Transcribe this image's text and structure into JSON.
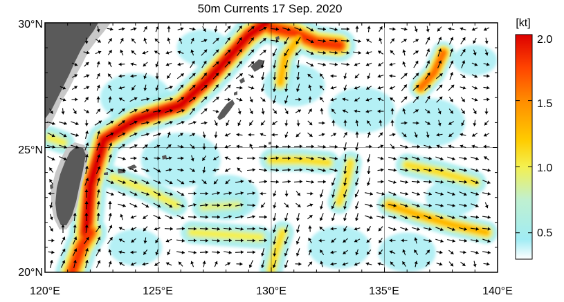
{
  "title": "50m Currents  17 Sep. 2020",
  "map": {
    "lon_range": [
      120,
      140
    ],
    "lat_range": [
      20,
      30
    ],
    "lon_ticks": [
      "120°E",
      "125°E",
      "130°E",
      "135°E",
      "140°E"
    ],
    "lat_ticks": [
      "20°N",
      "25°N",
      "30°N"
    ],
    "grid": true,
    "arrow_color": "#000000",
    "land_color": "#5a5a5a",
    "shelf_color": "#c8c8c8"
  },
  "colorbar": {
    "unit": "[kt]",
    "labels": [
      "2.0",
      "1.5",
      "1.0",
      "0.5"
    ],
    "range": [
      0.3,
      2.0
    ],
    "stops": [
      {
        "v": 0.3,
        "color": "#ffffff"
      },
      {
        "v": 0.45,
        "color": "#a0ecf4"
      },
      {
        "v": 0.75,
        "color": "#c0f0d0"
      },
      {
        "v": 1.0,
        "color": "#f4f050"
      },
      {
        "v": 1.2,
        "color": "#ffcc00"
      },
      {
        "v": 1.5,
        "color": "#ff8c00"
      },
      {
        "v": 1.75,
        "color": "#ff4400"
      },
      {
        "v": 2.0,
        "color": "#dd0000"
      }
    ]
  },
  "chart_data": {
    "type": "heatmap",
    "title": "50m Currents  17 Sep. 2020",
    "variable": "current speed",
    "unit": "kt",
    "x_range_lon": [
      120,
      140
    ],
    "y_range_lat": [
      20,
      30
    ],
    "features": [
      {
        "lon": [
          121.8,
          122.0,
          122.6,
          124.0,
          126.0,
          127.2,
          128.2,
          129.0,
          129.8
        ],
        "lat": [
          21.5,
          23.5,
          25.3,
          26.1,
          26.7,
          27.7,
          28.7,
          29.5,
          30.0
        ],
        "speed": 2.0
      },
      {
        "lon": [
          130.0,
          131.0,
          132.0,
          133.0
        ],
        "lat": [
          29.8,
          29.6,
          29.2,
          29.1
        ],
        "speed": 1.8
      },
      {
        "lon": [
          131.2,
          130.6,
          130.4
        ],
        "lat": [
          29.4,
          28.6,
          27.6
        ],
        "speed": 1.3
      },
      {
        "lon": [
          121.2,
          121.6,
          122.0
        ],
        "lat": [
          20.0,
          21.0,
          21.6
        ],
        "speed": 1.8
      },
      {
        "lon": [
          136.6,
          137.2,
          137.6
        ],
        "lat": [
          27.4,
          28.0,
          28.8
        ],
        "speed": 1.6
      },
      {
        "lon": [
          135.2,
          136.5,
          138.0,
          139.5
        ],
        "lat": [
          22.7,
          22.3,
          21.9,
          21.6
        ],
        "speed": 1.3
      },
      {
        "lon": [
          136.0,
          137.5,
          139.0
        ],
        "lat": [
          24.3,
          24.0,
          23.6
        ],
        "speed": 1.1
      },
      {
        "lon": [
          130.0,
          131.3,
          132.5
        ],
        "lat": [
          24.5,
          24.5,
          24.4
        ],
        "speed": 1.1
      },
      {
        "lon": [
          123.0,
          124.5,
          125.8
        ],
        "lat": [
          23.8,
          23.3,
          22.7
        ],
        "speed": 1.0
      },
      {
        "lon": [
          126.5,
          128.0,
          129.5
        ],
        "lat": [
          21.6,
          21.5,
          21.4
        ],
        "speed": 1.0
      },
      {
        "lon": [
          130.5,
          130.2,
          130.0
        ],
        "lat": [
          21.6,
          20.8,
          20.1
        ],
        "speed": 1.1
      },
      {
        "lon": [
          127.0,
          128.5
        ],
        "lat": [
          22.6,
          22.7
        ],
        "speed": 0.9
      },
      {
        "lon": [
          133.5,
          133.3,
          133.0
        ],
        "lat": [
          24.4,
          23.6,
          22.8
        ],
        "speed": 1.1
      },
      {
        "lon": [
          120.2,
          120.8
        ],
        "lat": [
          25.4,
          25.2
        ],
        "speed": 1.0
      }
    ]
  }
}
